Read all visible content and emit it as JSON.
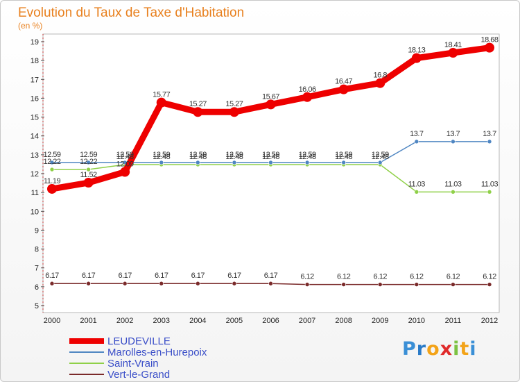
{
  "chart_data": {
    "type": "line",
    "title": "Evolution du Taux de Taxe d'Habitation",
    "ylabel": "(en %)",
    "xlabel": "",
    "categories": [
      "2000",
      "2001",
      "2002",
      "2003",
      "2004",
      "2005",
      "2006",
      "2007",
      "2008",
      "2009",
      "2010",
      "2011",
      "2012"
    ],
    "ylim": [
      5,
      19
    ],
    "yticks": [
      "5",
      "6",
      "7",
      "8",
      "9",
      "10",
      "11",
      "12",
      "13",
      "14",
      "15",
      "16",
      "17",
      "18",
      "19"
    ],
    "series": [
      {
        "name": "LEUDEVILLE",
        "color": "#ee0000",
        "values": [
          11.19,
          11.52,
          12.09,
          15.77,
          15.27,
          15.27,
          15.67,
          16.06,
          16.47,
          16.8,
          18.13,
          18.41,
          18.68
        ],
        "labels": [
          "11.19",
          "11.52",
          "12.09",
          "15.77",
          "15.27",
          "15.27",
          "15.67",
          "16.06",
          "16.47",
          "16.8",
          "18.13",
          "18.41",
          "18.68"
        ]
      },
      {
        "name": "Marolles-en-Hurepoix",
        "color": "#4f86c2",
        "values": [
          12.59,
          12.59,
          12.59,
          12.59,
          12.59,
          12.59,
          12.59,
          12.59,
          12.59,
          12.59,
          13.7,
          13.7,
          13.7
        ],
        "labels": [
          "12.59",
          "12.59",
          "12.59",
          "12.59",
          "12.59",
          "12.59",
          "12.59",
          "12.59",
          "12.59",
          "12.59",
          "13.7",
          "13.7",
          "13.7"
        ]
      },
      {
        "name": "Saint-Vrain",
        "color": "#8fd048",
        "values": [
          12.22,
          12.22,
          12.48,
          12.48,
          12.48,
          12.48,
          12.48,
          12.48,
          12.48,
          12.48,
          11.03,
          11.03,
          11.03
        ],
        "labels": [
          "12.22",
          "12.22",
          "12.48",
          "12.48",
          "12.48",
          "12.48",
          "12.48",
          "12.48",
          "12.48",
          "12.48",
          "11.03",
          "11.03",
          "11.03"
        ]
      },
      {
        "name": "Vert-le-Grand",
        "color": "#7a2a2a",
        "values": [
          6.17,
          6.17,
          6.17,
          6.17,
          6.17,
          6.17,
          6.17,
          6.12,
          6.12,
          6.12,
          6.12,
          6.12,
          6.12
        ],
        "labels": [
          "6.17",
          "6.17",
          "6.17",
          "6.17",
          "6.17",
          "6.17",
          "6.17",
          "6.12",
          "6.12",
          "6.12",
          "6.12",
          "6.12",
          "6.12"
        ]
      }
    ]
  },
  "logo": {
    "letters": [
      "P",
      "r",
      "o",
      "x",
      "i",
      "t",
      "i"
    ],
    "colors": [
      "#3a8fd6",
      "#2a7bc8",
      "#f3a318",
      "#e02a2a",
      "#7cc242",
      "#f3a318",
      "#3a8fd6"
    ]
  }
}
